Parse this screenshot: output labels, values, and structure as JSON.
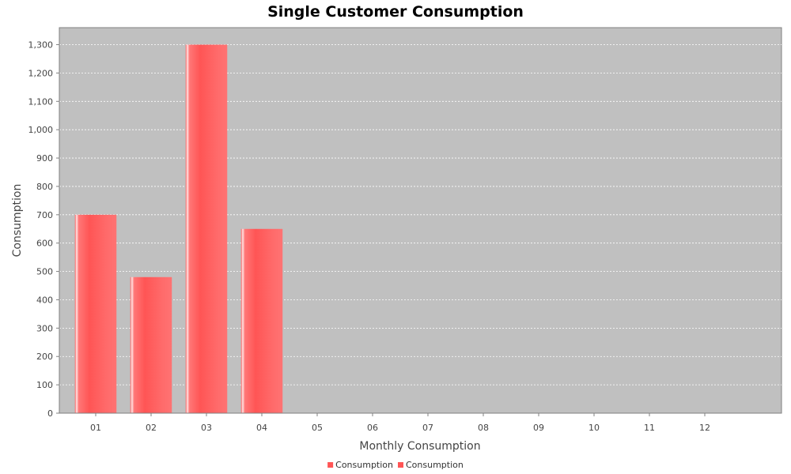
{
  "chart_data": {
    "type": "bar",
    "title": "Single Customer Consumption",
    "xlabel": "Monthly Consumption",
    "ylabel": "Consumption",
    "categories": [
      "01",
      "02",
      "03",
      "04",
      "05",
      "06",
      "07",
      "08",
      "09",
      "10",
      "11",
      "12"
    ],
    "series": [
      {
        "name": "Consumption",
        "values": [
          700,
          480,
          1300,
          650,
          null,
          null,
          null,
          null,
          null,
          null,
          null,
          null
        ]
      }
    ],
    "ylim": [
      0,
      1360
    ],
    "yticks": [
      "0",
      "100",
      "200",
      "300",
      "400",
      "500",
      "600",
      "700",
      "800",
      "900",
      "1,000",
      "1,100",
      "1,200",
      "1,300"
    ],
    "grid": true,
    "legend_position": "bottom-center",
    "legend_entries": [
      "Consumption",
      "Consumption"
    ],
    "colors": {
      "bar": "#ff5555",
      "plot_background": "#c0c0c0",
      "gridline": "#ffffff"
    }
  }
}
